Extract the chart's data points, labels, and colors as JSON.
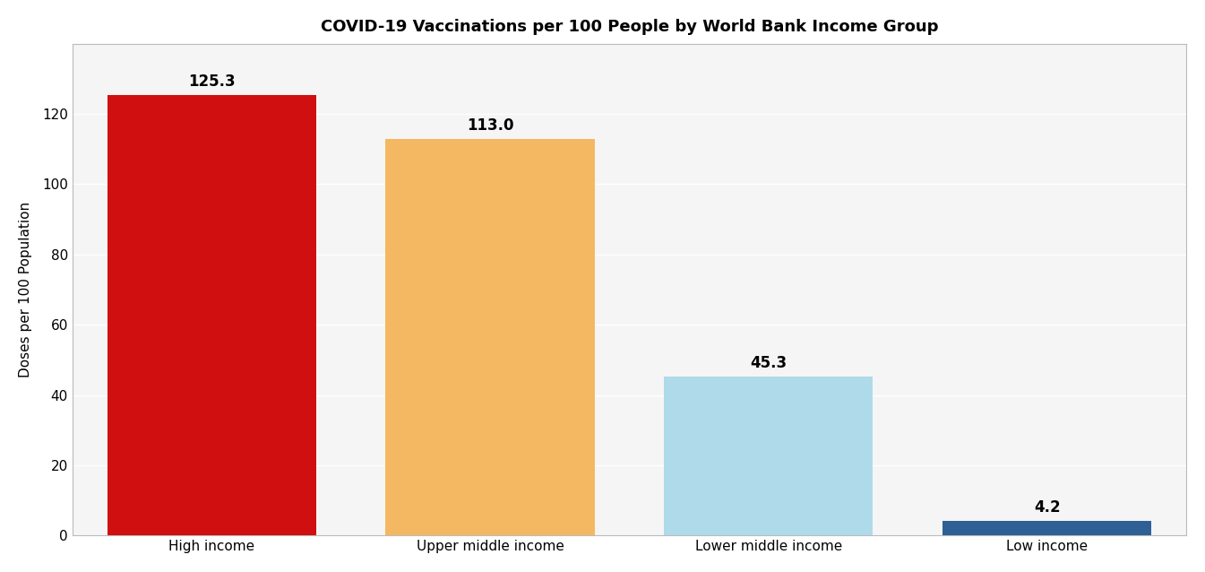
{
  "categories": [
    "High income",
    "Upper middle income",
    "Lower middle income",
    "Low income"
  ],
  "values": [
    125.3,
    113.0,
    45.3,
    4.2
  ],
  "bar_colors": [
    "#D01010",
    "#F5B862",
    "#AEDAEA",
    "#2E6096"
  ],
  "title": "COVID-19 Vaccinations per 100 People by World Bank Income Group",
  "ylabel": "Doses per 100 Population",
  "ylim": [
    0,
    140
  ],
  "yticks": [
    0,
    20,
    40,
    60,
    80,
    100,
    120
  ],
  "title_fontsize": 13,
  "label_fontsize": 11,
  "tick_fontsize": 11,
  "bar_label_fontsize": 12,
  "plot_bg_color": "#F5F5F5",
  "outer_bg_color": "#FFFFFF",
  "grid_color": "#FFFFFF",
  "bar_width": 0.75,
  "bar_edge_color": "none"
}
